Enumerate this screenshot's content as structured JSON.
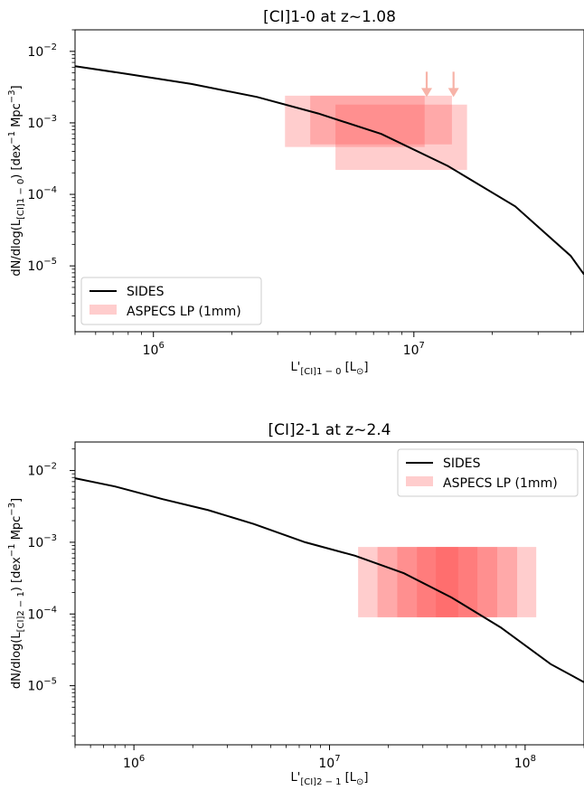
{
  "chart_data": [
    {
      "type": "line",
      "title": "[CI]1-0 at z~1.08",
      "xlabel": "L'[CI]1-0 [L☉]",
      "ylabel": "dN/dlog(L[CI]1-0) [dex⁻¹ Mpc⁻³]",
      "xscale": "log",
      "yscale": "log",
      "xlim": [
        500000,
        45000000
      ],
      "ylim": [
        1.2e-06,
        0.02
      ],
      "xticks": [
        {
          "value": 1000000,
          "base": "10",
          "exp": "6"
        },
        {
          "value": 10000000,
          "base": "10",
          "exp": "7"
        }
      ],
      "yticks": [
        {
          "value": 1e-05,
          "base": "10",
          "exp": "−5"
        },
        {
          "value": 0.0001,
          "base": "10",
          "exp": "−4"
        },
        {
          "value": 0.001,
          "base": "10",
          "exp": "−3"
        },
        {
          "value": 0.01,
          "base": "10",
          "exp": "−2"
        }
      ],
      "legend": {
        "position": "lower-left",
        "entries": [
          "SIDES",
          "ASPECS LP (1mm)"
        ]
      },
      "series": [
        {
          "name": "SIDES",
          "color": "#000000",
          "x": [
            500000,
            800000,
            1400000,
            2500000,
            4300000,
            7500000,
            13500000,
            24500000,
            40000000,
            45000000
          ],
          "y": [
            0.0062,
            0.0048,
            0.0035,
            0.0023,
            0.00135,
            0.0007,
            0.00025,
            6.8e-05,
            1.38e-05,
            7.6e-06
          ]
        },
        {
          "name": "ASPECS LP (1mm)",
          "color": "#ff4d4d",
          "boxes": [
            {
              "x": [
                3200000,
                11000000
              ],
              "y": [
                0.00046,
                0.0024
              ]
            },
            {
              "x": [
                4000000,
                14000000
              ],
              "y": [
                0.0005,
                0.0024
              ]
            },
            {
              "x": [
                5000000,
                16000000
              ],
              "y": [
                0.00022,
                0.0018
              ]
            }
          ],
          "upper_limits": [
            {
              "x": 11200000,
              "y": 0.0029
            },
            {
              "x": 14200000,
              "y": 0.0029
            }
          ]
        }
      ]
    },
    {
      "type": "line",
      "title": "[CI]2-1 at z~2.4",
      "xlabel": "L'[CI]2-1 [L☉]",
      "ylabel": "dN/dlog(L[CI]2-1) [dex⁻¹ Mpc⁻³]",
      "xscale": "log",
      "yscale": "log",
      "xlim": [
        500000,
        200000000
      ],
      "ylim": [
        1.5e-06,
        0.025
      ],
      "xticks": [
        {
          "value": 1000000,
          "base": "10",
          "exp": "6"
        },
        {
          "value": 10000000,
          "base": "10",
          "exp": "7"
        },
        {
          "value": 100000000,
          "base": "10",
          "exp": "8"
        }
      ],
      "yticks": [
        {
          "value": 1e-05,
          "base": "10",
          "exp": "−5"
        },
        {
          "value": 0.0001,
          "base": "10",
          "exp": "−4"
        },
        {
          "value": 0.001,
          "base": "10",
          "exp": "−3"
        },
        {
          "value": 0.01,
          "base": "10",
          "exp": "−2"
        }
      ],
      "legend": {
        "position": "top-right",
        "entries": [
          "SIDES",
          "ASPECS LP (1mm)"
        ]
      },
      "series": [
        {
          "name": "SIDES",
          "color": "#000000",
          "x": [
            500000,
            800000,
            1400000,
            2400000,
            4100000,
            7500000,
            13500000,
            24000000,
            42000000,
            75000000,
            135000000,
            200000000
          ],
          "y": [
            0.0078,
            0.006,
            0.004,
            0.0028,
            0.0018,
            0.001,
            0.00065,
            0.00037,
            0.00017,
            6.5e-05,
            2e-05,
            1.12e-05
          ]
        },
        {
          "name": "ASPECS LP (1mm)",
          "color": "#ff4d4d",
          "boxes": [
            {
              "x": [
                14000000,
                114000000
              ],
              "y": [
                9e-05,
                0.00086
              ]
            },
            {
              "x": [
                17600000,
                91000000
              ],
              "y": [
                9e-05,
                0.00086
              ]
            },
            {
              "x": [
                22200000,
                72000000
              ],
              "y": [
                9e-05,
                0.00086
              ]
            },
            {
              "x": [
                28000000,
                57000000
              ],
              "y": [
                9e-05,
                0.00086
              ]
            },
            {
              "x": [
                35000000,
                45500000
              ],
              "y": [
                9e-05,
                0.00086
              ]
            }
          ]
        }
      ]
    }
  ]
}
